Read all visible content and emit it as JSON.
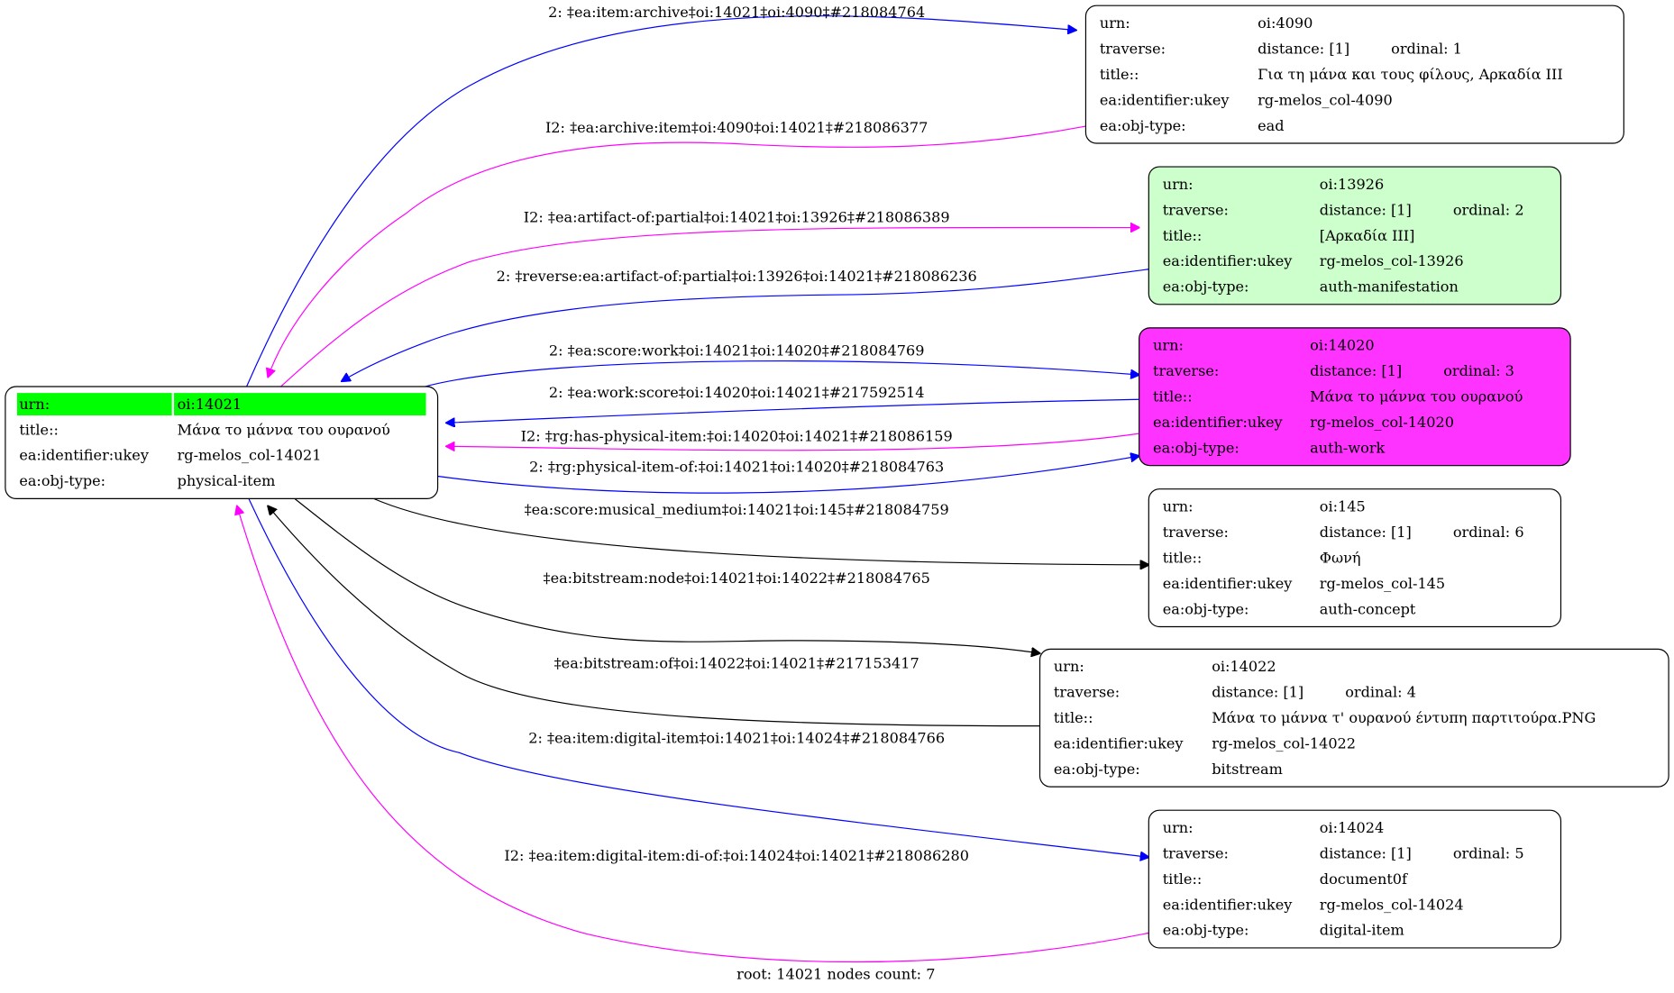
{
  "colors": {
    "blue": "#0000ff",
    "magenta": "#ff00ff",
    "black": "#000000",
    "root_highlight": "#00ff00",
    "manifestation_fill": "#ccffcc",
    "work_fill": "#ff33ff",
    "default_fill": "#ffffff"
  },
  "root_node": {
    "id": "14021",
    "rows": [
      {
        "label": "urn:",
        "value": "oi:14021"
      },
      {
        "label": "title::",
        "value": "Μάνα το μάννα του ουρανού"
      },
      {
        "label": "ea:identifier:ukey",
        "value": "rg-melos_col-14021"
      },
      {
        "label": "ea:obj-type:",
        "value": "physical-item"
      }
    ]
  },
  "nodes": [
    {
      "id": "4090",
      "fill": "#ffffff",
      "rows": [
        {
          "label": "urn:",
          "value": "oi:4090"
        },
        {
          "label": "traverse:",
          "value": "distance: [1]",
          "extra": "ordinal: 1"
        },
        {
          "label": "title::",
          "value": "Για τη μάνα και τους φίλους, Αρκαδία ΙΙΙ"
        },
        {
          "label": "ea:identifier:ukey",
          "value": "rg-melos_col-4090"
        },
        {
          "label": "ea:obj-type:",
          "value": "ead"
        }
      ]
    },
    {
      "id": "13926",
      "fill": "#ccffcc",
      "rows": [
        {
          "label": "urn:",
          "value": "oi:13926"
        },
        {
          "label": "traverse:",
          "value": "distance: [1]",
          "extra": "ordinal: 2"
        },
        {
          "label": "title::",
          "value": "[Αρκαδία ΙΙΙ]"
        },
        {
          "label": "ea:identifier:ukey",
          "value": "rg-melos_col-13926"
        },
        {
          "label": "ea:obj-type:",
          "value": "auth-manifestation"
        }
      ]
    },
    {
      "id": "14020",
      "fill": "#ff33ff",
      "rows": [
        {
          "label": "urn:",
          "value": "oi:14020"
        },
        {
          "label": "traverse:",
          "value": "distance: [1]",
          "extra": "ordinal: 3"
        },
        {
          "label": "title::",
          "value": "Μάνα το μάννα του ουρανού"
        },
        {
          "label": "ea:identifier:ukey",
          "value": "rg-melos_col-14020"
        },
        {
          "label": "ea:obj-type:",
          "value": "auth-work"
        }
      ]
    },
    {
      "id": "145",
      "fill": "#ffffff",
      "rows": [
        {
          "label": "urn:",
          "value": "oi:145"
        },
        {
          "label": "traverse:",
          "value": "distance: [1]",
          "extra": "ordinal: 6"
        },
        {
          "label": "title::",
          "value": "Φωνή"
        },
        {
          "label": "ea:identifier:ukey",
          "value": "rg-melos_col-145"
        },
        {
          "label": "ea:obj-type:",
          "value": "auth-concept"
        }
      ]
    },
    {
      "id": "14022",
      "fill": "#ffffff",
      "rows": [
        {
          "label": "urn:",
          "value": "oi:14022"
        },
        {
          "label": "traverse:",
          "value": "distance: [1]",
          "extra": "ordinal: 4"
        },
        {
          "label": "title::",
          "value": "Μάνα το μάννα τ' ουρανού έντυπη παρτιτούρα.PNG"
        },
        {
          "label": "ea:identifier:ukey",
          "value": "rg-melos_col-14022"
        },
        {
          "label": "ea:obj-type:",
          "value": "bitstream"
        }
      ]
    },
    {
      "id": "14024",
      "fill": "#ffffff",
      "rows": [
        {
          "label": "urn:",
          "value": "oi:14024"
        },
        {
          "label": "traverse:",
          "value": "distance: [1]",
          "extra": "ordinal: 5"
        },
        {
          "label": "title::",
          "value": "document0f"
        },
        {
          "label": "ea:identifier:ukey",
          "value": "rg-melos_col-14024"
        },
        {
          "label": "ea:obj-type:",
          "value": "digital-item"
        }
      ]
    }
  ],
  "edges": [
    {
      "label": "2: ‡ea:item:archive‡oi:14021‡oi:4090‡#218084764",
      "color": "#0000ff"
    },
    {
      "label": "I2: ‡ea:archive:item‡oi:4090‡oi:14021‡#218086377",
      "color": "#ff00ff"
    },
    {
      "label": "I2: ‡ea:artifact-of:partial‡oi:14021‡oi:13926‡#218086389",
      "color": "#ff00ff"
    },
    {
      "label": "2: ‡reverse:ea:artifact-of:partial‡oi:13926‡oi:14021‡#218086236",
      "color": "#0000ff"
    },
    {
      "label": "2: ‡ea:score:work‡oi:14021‡oi:14020‡#218084769",
      "color": "#0000ff"
    },
    {
      "label": "2: ‡ea:work:score‡oi:14020‡oi:14021‡#217592514",
      "color": "#0000ff"
    },
    {
      "label": "I2: ‡rg:has-physical-item:‡oi:14020‡oi:14021‡#218086159",
      "color": "#ff00ff"
    },
    {
      "label": "2: ‡rg:physical-item-of:‡oi:14021‡oi:14020‡#218084763",
      "color": "#0000ff"
    },
    {
      "label": "‡ea:score:musical_medium‡oi:14021‡oi:145‡#218084759",
      "color": "#000000"
    },
    {
      "label": "‡ea:bitstream:node‡oi:14021‡oi:14022‡#218084765",
      "color": "#000000"
    },
    {
      "label": "‡ea:bitstream:of‡oi:14022‡oi:14021‡#217153417",
      "color": "#000000"
    },
    {
      "label": "2: ‡ea:item:digital-item‡oi:14021‡oi:14024‡#218084766",
      "color": "#0000ff"
    },
    {
      "label": "I2: ‡ea:item:digital-item:di-of:‡oi:14024‡oi:14021‡#218086280",
      "color": "#ff00ff"
    }
  ],
  "footer": "root: 14021 nodes count: 7"
}
